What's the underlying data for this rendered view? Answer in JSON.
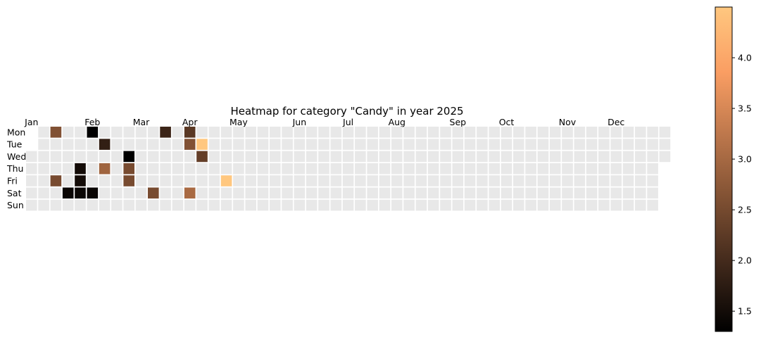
{
  "chart_data": {
    "type": "heatmap",
    "title": "Heatmap for category \"Candy\" in year 2025",
    "year": 2025,
    "row_labels": [
      "Mon",
      "Tue",
      "Wed",
      "Thu",
      "Fri",
      "Sat",
      "Sun"
    ],
    "month_labels": [
      {
        "label": "Jan",
        "week": 0
      },
      {
        "label": "Feb",
        "week": 5
      },
      {
        "label": "Mar",
        "week": 9
      },
      {
        "label": "Apr",
        "week": 13
      },
      {
        "label": "May",
        "week": 17
      },
      {
        "label": "Jun",
        "week": 22
      },
      {
        "label": "Jul",
        "week": 26
      },
      {
        "label": "Aug",
        "week": 30
      },
      {
        "label": "Sep",
        "week": 35
      },
      {
        "label": "Oct",
        "week": 39
      },
      {
        "label": "Nov",
        "week": 44
      },
      {
        "label": "Dec",
        "week": 48
      }
    ],
    "num_weeks": 53,
    "first_week_start_row": 2,
    "last_week_end_row": 2,
    "missing_color": "#e8e8e8",
    "colormap": "copper",
    "colorbar": {
      "min": 1.3,
      "max": 4.5,
      "ticks": [
        1.5,
        2.0,
        2.5,
        3.0,
        3.5,
        4.0
      ],
      "tick_labels": [
        "1.5",
        "2.0",
        "2.5",
        "3.0",
        "3.5",
        "4.0"
      ]
    },
    "cells": [
      {
        "week": 2,
        "day": 0,
        "value": 2.6
      },
      {
        "week": 5,
        "day": 0,
        "value": 1.3
      },
      {
        "week": 11,
        "day": 0,
        "value": 1.9
      },
      {
        "week": 13,
        "day": 0,
        "value": 2.2
      },
      {
        "week": 6,
        "day": 1,
        "value": 1.8
      },
      {
        "week": 13,
        "day": 1,
        "value": 2.6
      },
      {
        "week": 14,
        "day": 1,
        "value": 4.5
      },
      {
        "week": 8,
        "day": 2,
        "value": 1.3
      },
      {
        "week": 14,
        "day": 2,
        "value": 2.3
      },
      {
        "week": 4,
        "day": 3,
        "value": 1.5
      },
      {
        "week": 6,
        "day": 3,
        "value": 2.9
      },
      {
        "week": 8,
        "day": 3,
        "value": 2.5
      },
      {
        "week": 2,
        "day": 4,
        "value": 2.5
      },
      {
        "week": 4,
        "day": 4,
        "value": 1.5
      },
      {
        "week": 8,
        "day": 4,
        "value": 2.5
      },
      {
        "week": 16,
        "day": 4,
        "value": 4.5
      },
      {
        "week": 3,
        "day": 5,
        "value": 1.4
      },
      {
        "week": 4,
        "day": 5,
        "value": 1.4
      },
      {
        "week": 5,
        "day": 5,
        "value": 1.4
      },
      {
        "week": 10,
        "day": 5,
        "value": 2.5
      },
      {
        "week": 13,
        "day": 5,
        "value": 3.0
      }
    ]
  }
}
